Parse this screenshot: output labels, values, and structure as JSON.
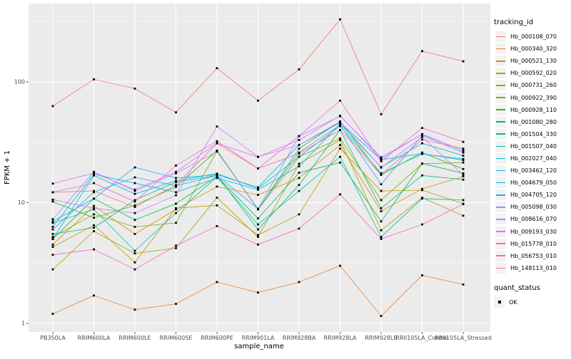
{
  "colors": {
    "panel_bg": "#EBEBEB",
    "grid": "#FFFFFF",
    "axis_text": "#4D4D4D",
    "text": "#000000",
    "legend_key_bg": "#F2F2F2",
    "point": "#000000"
  },
  "chart_data": {
    "type": "line",
    "x_label": "sample_name",
    "y_label": "FPKM + 1",
    "y_scale": "log10",
    "y_ticks": [
      1,
      10,
      100
    ],
    "y_minor_gridlines": [
      3.162,
      31.62,
      316.2
    ],
    "ylim": [
      0.85,
      446
    ],
    "grid": "on",
    "point_marker": "black-square",
    "legend_position": "right",
    "legend_title": "tracking_id",
    "legend2_title": "quant_status",
    "legend2_items": [
      "OK"
    ],
    "categories": [
      "PB350LA",
      "RRIM600LA",
      "RRIM600LE",
      "RRIM600SE",
      "RRIM600PE",
      "RRIM901LA",
      "RRIM928BA",
      "RRIM928LA",
      "RRIM928LB",
      "RRII105LA_Control",
      "RRII105LA_Stressed"
    ],
    "series": [
      {
        "name": "Hb_000108_070",
        "color": "#F8766D",
        "values": [
          63,
          105,
          88,
          56,
          130,
          70,
          127,
          330,
          54,
          180,
          148
        ]
      },
      {
        "name": "Hb_000340_320",
        "color": "#EA8331",
        "values": [
          1.2,
          1.7,
          1.3,
          1.45,
          2.2,
          1.8,
          2.2,
          3.0,
          1.15,
          2.5,
          2.1
        ]
      },
      {
        "name": "Hb_000521_130",
        "color": "#D89000",
        "values": [
          4.5,
          9.4,
          5.5,
          8.8,
          13.6,
          11.6,
          16,
          30,
          8.5,
          13,
          16.5
        ]
      },
      {
        "name": "Hb_000592_020",
        "color": "#C09B00",
        "values": [
          4.3,
          6.5,
          3.2,
          9.0,
          9.5,
          5.4,
          8.0,
          28,
          12.5,
          12.7,
          9.8
        ]
      },
      {
        "name": "Hb_000731_260",
        "color": "#A3A500",
        "values": [
          2.8,
          5.8,
          3.8,
          4.2,
          11,
          5.2,
          21,
          33,
          5.9,
          11,
          7.8
        ]
      },
      {
        "name": "Hb_000922_390",
        "color": "#7CAE00",
        "values": [
          5.2,
          8.0,
          6.3,
          6.8,
          26.7,
          8.8,
          24,
          34,
          10.5,
          21,
          21.5
        ]
      },
      {
        "name": "Hb_000928_110",
        "color": "#39B600",
        "values": [
          10.2,
          7.5,
          9.5,
          13.5,
          27,
          8.8,
          28,
          47,
          17,
          26,
          19
        ]
      },
      {
        "name": "Hb_001080_280",
        "color": "#00BB4E",
        "values": [
          5.0,
          10.8,
          7.2,
          9.8,
          16.5,
          7.4,
          17.7,
          21.5,
          7.0,
          21.1,
          17.5
        ]
      },
      {
        "name": "Hb_001504_330",
        "color": "#00BF7D",
        "values": [
          5.5,
          6.2,
          10.5,
          14.8,
          16.8,
          6.0,
          14,
          40,
          9.0,
          16.8,
          15.5
        ]
      },
      {
        "name": "Hb_001507_040",
        "color": "#00C1A3",
        "values": [
          6.8,
          8.8,
          4.0,
          8.2,
          16.3,
          6.6,
          12.5,
          24,
          5.2,
          10.8,
          10.5
        ]
      },
      {
        "name": "Hb_002027_040",
        "color": "#00BFC4",
        "values": [
          5.0,
          16.8,
          11.8,
          15.2,
          17.4,
          13.1,
          24,
          43,
          17.5,
          25.3,
          23
        ]
      },
      {
        "name": "Hb_003462_120",
        "color": "#00BAE0",
        "values": [
          6.3,
          17.2,
          14.5,
          12.2,
          16.0,
          12.8,
          20,
          45,
          19.7,
          31,
          24.5
        ]
      },
      {
        "name": "Hb_004679_050",
        "color": "#00B0F6",
        "values": [
          7.0,
          10.8,
          19.6,
          16,
          17.0,
          13.4,
          30,
          46,
          22.7,
          25.5,
          22.5
        ]
      },
      {
        "name": "Hb_004705_120",
        "color": "#35A2FF",
        "values": [
          6.0,
          12.2,
          16.2,
          13.8,
          16.8,
          8.9,
          26,
          44,
          14.2,
          36,
          26
        ]
      },
      {
        "name": "Hb_005098_030",
        "color": "#9590FF",
        "values": [
          7.3,
          18,
          12.5,
          17.5,
          26.5,
          8.9,
          35.6,
          52,
          23.8,
          36.7,
          27
        ]
      },
      {
        "name": "Hb_008616_070",
        "color": "#C77CFF",
        "values": [
          10.6,
          9.0,
          8.2,
          11.5,
          42.7,
          24,
          30,
          47,
          19.5,
          35,
          17
        ]
      },
      {
        "name": "Hb_009193_030",
        "color": "#E76BF3",
        "values": [
          14.4,
          17.6,
          12.8,
          18,
          31,
          23.9,
          33,
          52.5,
          23,
          37,
          27
        ]
      },
      {
        "name": "Hb_015778_010",
        "color": "#FA62DB",
        "values": [
          12.2,
          14.5,
          10.2,
          20.3,
          32.3,
          19.2,
          35.6,
          70,
          22,
          41.5,
          31.9
        ]
      },
      {
        "name": "Hb_056753_010",
        "color": "#FF62BC",
        "values": [
          3.7,
          4.1,
          2.8,
          4.4,
          6.4,
          4.5,
          6.1,
          11.7,
          5.0,
          6.6,
          9.7
        ]
      },
      {
        "name": "Hb_148113_010",
        "color": "#FF6A98",
        "values": [
          12.2,
          12.5,
          9.2,
          14,
          31,
          19.2,
          25.5,
          40,
          17,
          33.3,
          28
        ]
      }
    ]
  }
}
